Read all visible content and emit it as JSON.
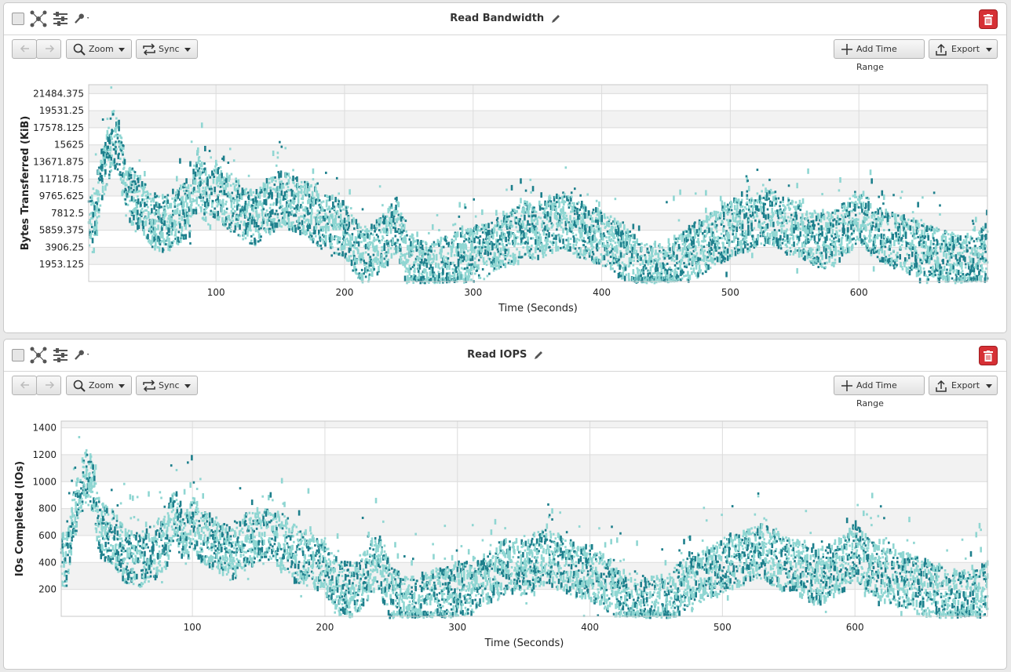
{
  "panels": [
    {
      "title": "Read Bandwidth",
      "toolbar": {
        "zoom_label": "Zoom",
        "sync_label": "Sync",
        "add_time_range_label": "Add Time Range",
        "export_label": "Export"
      },
      "icons": [
        "checkbox",
        "scatter-nodes-icon",
        "sliders-icon",
        "key-icon",
        "pencil-icon",
        "trash-icon",
        "back-arrow-icon",
        "forward-arrow-icon",
        "magnifier-icon",
        "sync-icon",
        "plus-icon",
        "upload-icon"
      ],
      "colors": {
        "light": "#8fd6d2",
        "dark": "#1d7f8c",
        "band": "#f2f2f2",
        "delete": "#d63035"
      }
    },
    {
      "title": "Read IOPS",
      "toolbar": {
        "zoom_label": "Zoom",
        "sync_label": "Sync",
        "add_time_range_label": "Add Time Range",
        "export_label": "Export"
      },
      "colors": {
        "light": "#8fd6d2",
        "dark": "#1d7f8c",
        "band": "#f2f2f2",
        "delete": "#d63035"
      }
    }
  ],
  "chart_data": [
    {
      "type": "scatter",
      "title": "Read Bandwidth",
      "xlabel": "Time (Seconds)",
      "ylabel": "Bytes Transferred (KiB)",
      "xlim": [
        1,
        700
      ],
      "ylim": [
        0,
        22500
      ],
      "x_ticks": [
        100,
        200,
        300,
        400,
        500,
        600
      ],
      "y_ticks": [
        1953.125,
        3906.25,
        5859.375,
        7812.5,
        9765.625,
        11718.75,
        13671.875,
        15625,
        17578.125,
        19531.25,
        21484.375
      ],
      "y_tick_labels": [
        "1953.125",
        "3906.25",
        "5859.375",
        "7812.5",
        "9765.625",
        "11718.75",
        "13671.875",
        "15625",
        "17578.125",
        "19531.25",
        "21484.375"
      ],
      "grid": true,
      "series": [
        {
          "x": [
            5,
            10,
            15,
            20,
            25,
            30,
            40,
            50,
            60,
            70,
            80,
            86,
            90,
            95,
            100,
            110,
            120,
            130,
            140,
            150,
            160,
            170,
            180,
            190,
            200,
            210,
            220,
            230,
            240,
            250,
            260,
            270,
            280,
            290,
            300,
            310,
            320,
            330,
            340,
            350,
            360,
            370,
            380,
            390,
            400,
            410,
            420,
            430,
            440,
            450,
            460,
            470,
            480,
            490,
            500,
            510,
            520,
            530,
            540,
            550,
            560,
            570,
            580,
            590,
            600,
            610,
            620,
            630,
            640,
            650,
            660,
            670,
            680,
            690,
            700
          ],
          "values": [
            6500,
            11500,
            14000,
            16500,
            15000,
            10500,
            9000,
            7000,
            6500,
            7500,
            8500,
            12000,
            10000,
            9000,
            10500,
            9000,
            8000,
            7000,
            8500,
            9500,
            9000,
            8500,
            7000,
            6500,
            6000,
            3500,
            3000,
            4500,
            6500,
            2500,
            1500,
            1500,
            2000,
            2500,
            3000,
            3500,
            4500,
            5000,
            6000,
            5500,
            6500,
            7000,
            6000,
            5500,
            5000,
            4000,
            3000,
            1200,
            1000,
            1500,
            2000,
            3500,
            4000,
            5000,
            6000,
            6500,
            7000,
            7500,
            6500,
            6000,
            5500,
            4500,
            5000,
            6000,
            7500,
            6000,
            5000,
            4500,
            4000,
            3500,
            3000,
            2500,
            2000,
            2000,
            3500
          ]
        }
      ]
    },
    {
      "type": "scatter",
      "title": "Read IOPS",
      "xlabel": "Time (Seconds)",
      "ylabel": "IOs Completed (IOs)",
      "xlim": [
        1,
        700
      ],
      "ylim": [
        0,
        1450
      ],
      "x_ticks": [
        100,
        200,
        300,
        400,
        500,
        600
      ],
      "y_ticks": [
        200,
        400,
        600,
        800,
        1000,
        1200,
        1400
      ],
      "y_tick_labels": [
        "200",
        "400",
        "600",
        "800",
        "1000",
        "1200",
        "1400"
      ],
      "grid": true,
      "series": [
        {
          "x": [
            5,
            10,
            15,
            20,
            25,
            30,
            40,
            50,
            60,
            70,
            80,
            86,
            90,
            95,
            100,
            110,
            120,
            130,
            140,
            150,
            160,
            170,
            180,
            190,
            200,
            210,
            220,
            230,
            240,
            250,
            260,
            270,
            280,
            290,
            300,
            310,
            320,
            330,
            340,
            350,
            360,
            370,
            380,
            390,
            400,
            410,
            420,
            430,
            440,
            450,
            460,
            470,
            480,
            490,
            500,
            510,
            520,
            530,
            540,
            550,
            560,
            570,
            580,
            590,
            600,
            610,
            620,
            630,
            640,
            650,
            660,
            670,
            680,
            690,
            700
          ],
          "values": [
            420,
            750,
            900,
            1050,
            950,
            650,
            580,
            450,
            420,
            480,
            550,
            780,
            650,
            580,
            680,
            580,
            520,
            450,
            550,
            600,
            580,
            550,
            450,
            420,
            380,
            220,
            190,
            290,
            420,
            160,
            100,
            100,
            130,
            160,
            190,
            220,
            290,
            320,
            380,
            350,
            420,
            450,
            380,
            350,
            320,
            260,
            190,
            80,
            65,
            100,
            130,
            220,
            260,
            320,
            380,
            420,
            450,
            480,
            420,
            380,
            350,
            290,
            320,
            380,
            480,
            380,
            320,
            290,
            260,
            220,
            190,
            160,
            130,
            130,
            220
          ]
        }
      ]
    }
  ]
}
